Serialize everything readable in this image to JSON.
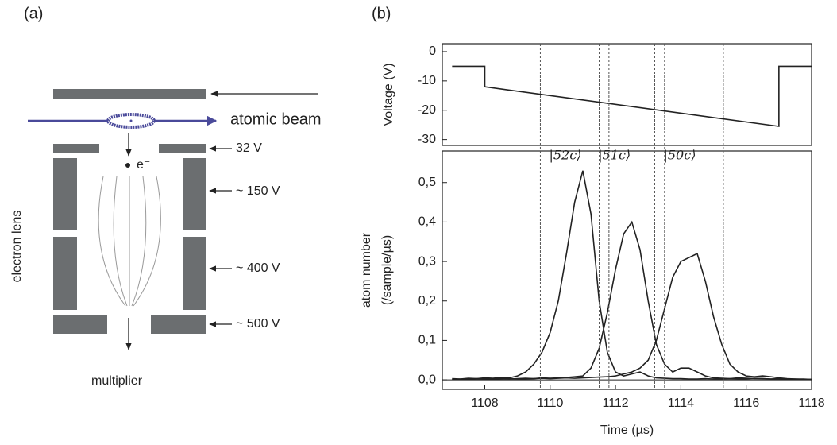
{
  "panel_labels": [
    "(a)",
    "(b)"
  ],
  "diagram": {
    "atomic_beam": "atomic beam",
    "electron": "e⁻",
    "electron_lens": "electron lens",
    "multiplier": "multiplier",
    "voltages": [
      "32 V",
      "~ 150 V",
      "~ 400 V",
      "~ 500 V"
    ]
  },
  "chart_data": [
    {
      "type": "line",
      "ylabel": "Voltage (V)",
      "x": [
        1107,
        1108,
        1108,
        1117,
        1117,
        1118
      ],
      "series": [
        {
          "color": "#222222",
          "values": [
            -5,
            -5,
            -12,
            -25.5,
            -5,
            -5
          ]
        }
      ],
      "xlim": [
        1106.7,
        1118
      ],
      "ylim": [
        -32,
        2.7
      ],
      "yticks": [
        0,
        -10,
        -20,
        -30
      ]
    },
    {
      "type": "line",
      "ylabel": [
        "atom number",
        "(/sample/µs)"
      ],
      "xlabel": "Time (µs)",
      "x": [
        1107,
        1107.25,
        1107.5,
        1107.75,
        1108,
        1108.25,
        1108.5,
        1108.75,
        1109,
        1109.25,
        1109.5,
        1109.75,
        1110,
        1110.25,
        1110.5,
        1110.75,
        1111,
        1111.25,
        1111.5,
        1111.75,
        1112,
        1112.25,
        1112.5,
        1112.75,
        1113,
        1113.25,
        1113.5,
        1113.75,
        1114,
        1114.25,
        1114.5,
        1114.75,
        1115,
        1115.25,
        1115.5,
        1115.75,
        1116,
        1116.25,
        1116.5,
        1116.75,
        1117,
        1117.25,
        1117.5,
        1117.75,
        1118
      ],
      "series": [
        {
          "name": "|52c⟩",
          "color": "#222222",
          "values": [
            0.003,
            0.002,
            0.004,
            0.003,
            0.005,
            0.004,
            0.006,
            0.005,
            0.01,
            0.02,
            0.04,
            0.07,
            0.12,
            0.2,
            0.32,
            0.45,
            0.53,
            0.42,
            0.2,
            0.07,
            0.02,
            0.01,
            0.015,
            0.02,
            0.01,
            0.005,
            0.004,
            0.003,
            0.003,
            0.002,
            0.002,
            0.003,
            0.002,
            0.002,
            0.003,
            0.002,
            0.002,
            0.004,
            0.003,
            0.002,
            0.002,
            0.001,
            0.001,
            0.001,
            0.001
          ]
        },
        {
          "name": "|51c⟩",
          "color": "#222222",
          "values": [
            0.002,
            0.001,
            0.002,
            0.003,
            0.002,
            0.002,
            0.003,
            0.002,
            0.003,
            0.004,
            0.003,
            0.005,
            0.004,
            0.005,
            0.006,
            0.008,
            0.01,
            0.03,
            0.08,
            0.17,
            0.28,
            0.37,
            0.4,
            0.33,
            0.2,
            0.09,
            0.04,
            0.02,
            0.03,
            0.03,
            0.02,
            0.01,
            0.005,
            0.004,
            0.003,
            0.005,
            0.004,
            0.003,
            0.003,
            0.002,
            0.003,
            0.002,
            0.002,
            0.001,
            0.001
          ]
        },
        {
          "name": "|50c⟩",
          "color": "#222222",
          "values": [
            0.001,
            0.002,
            0.001,
            0.002,
            0.002,
            0.001,
            0.002,
            0.003,
            0.002,
            0.002,
            0.003,
            0.004,
            0.003,
            0.004,
            0.005,
            0.004,
            0.005,
            0.006,
            0.007,
            0.008,
            0.01,
            0.015,
            0.02,
            0.03,
            0.05,
            0.1,
            0.18,
            0.26,
            0.3,
            0.31,
            0.32,
            0.25,
            0.16,
            0.09,
            0.04,
            0.02,
            0.01,
            0.008,
            0.01,
            0.008,
            0.005,
            0.003,
            0.002,
            0.002,
            0.001
          ]
        }
      ],
      "vlines": [
        1109.7,
        1111.5,
        1111.8,
        1113.2,
        1113.5,
        1115.3
      ],
      "xlim": [
        1106.7,
        1118
      ],
      "ylim": [
        -0.024,
        0.58
      ],
      "xticks": [
        1108,
        1110,
        1112,
        1114,
        1116,
        1118
      ],
      "yticks": [
        {
          "value": 0,
          "label": "0,0"
        },
        {
          "value": 0.1,
          "label": "0,1"
        },
        {
          "value": 0.2,
          "label": "0,2"
        },
        {
          "value": 0.3,
          "label": "0,3"
        },
        {
          "value": 0.4,
          "label": "0,4"
        },
        {
          "value": 0.5,
          "label": "0,5"
        }
      ]
    }
  ]
}
